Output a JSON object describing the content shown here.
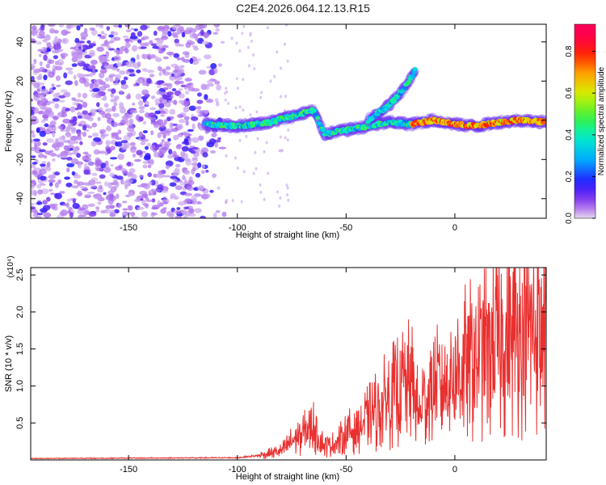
{
  "title": "C2E4.2026.064.12.13.R15",
  "colors": {
    "line": "#e8302f",
    "speckle": "#8a3ff0",
    "axis": "#000000"
  },
  "chart_data": [
    {
      "type": "heatmap",
      "name": "spectrogram",
      "xlabel": "Height of straight line (km)",
      "ylabel": "Frequency (Hz)",
      "xlim": [
        -195,
        42
      ],
      "ylim": [
        -50,
        49
      ],
      "xticks": [
        -150,
        -100,
        -50,
        0
      ],
      "yticks": [
        -40,
        -20,
        0,
        20,
        40
      ],
      "colorbar": {
        "label": "Normalized spectral amplitude",
        "range": [
          0.0,
          0.93
        ],
        "ticks": [
          0.0,
          0.2,
          0.4,
          0.6,
          0.8
        ]
      },
      "tracks": [
        {
          "name": "main",
          "x": [
            -115,
            -100,
            -85,
            -75,
            -65,
            -60,
            -50,
            -40,
            -30,
            -20,
            -10,
            0,
            10,
            20,
            30,
            42
          ],
          "y": [
            -2,
            -3,
            -1,
            2,
            5,
            -7,
            -5,
            -3,
            -1,
            -2,
            0,
            -2,
            -3,
            -1,
            0,
            -1
          ]
        },
        {
          "name": "branch",
          "x": [
            -40,
            -30,
            -25,
            -20,
            -18
          ],
          "y": [
            0,
            8,
            14,
            22,
            26
          ]
        }
      ]
    },
    {
      "type": "line",
      "name": "snr",
      "xlabel": "Height of straight line (km)",
      "ylabel": "SNR (10 * v/v)",
      "scale_label": "(x10⁴)",
      "xlim": [
        -195,
        42
      ],
      "ylim": [
        0,
        2.6
      ],
      "xticks": [
        -150,
        -100,
        -50,
        0
      ],
      "yticks": [
        0.5,
        1.0,
        1.5,
        2.0,
        2.5
      ],
      "series": [
        {
          "name": "SNR",
          "x": [
            -195,
            -100,
            -90,
            -80,
            -75,
            -70,
            -65,
            -60,
            -55,
            -50,
            -45,
            -40,
            -35,
            -30,
            -25,
            -20,
            -16,
            -15,
            -10,
            0,
            10,
            20,
            30,
            42
          ],
          "y": [
            0.02,
            0.03,
            0.06,
            0.12,
            0.25,
            0.35,
            0.45,
            0.18,
            0.22,
            0.35,
            0.45,
            0.55,
            0.7,
            0.85,
            1.0,
            1.05,
            0.55,
            0.8,
            0.95,
            1.2,
            1.4,
            1.55,
            1.7,
            1.8
          ]
        }
      ]
    }
  ]
}
